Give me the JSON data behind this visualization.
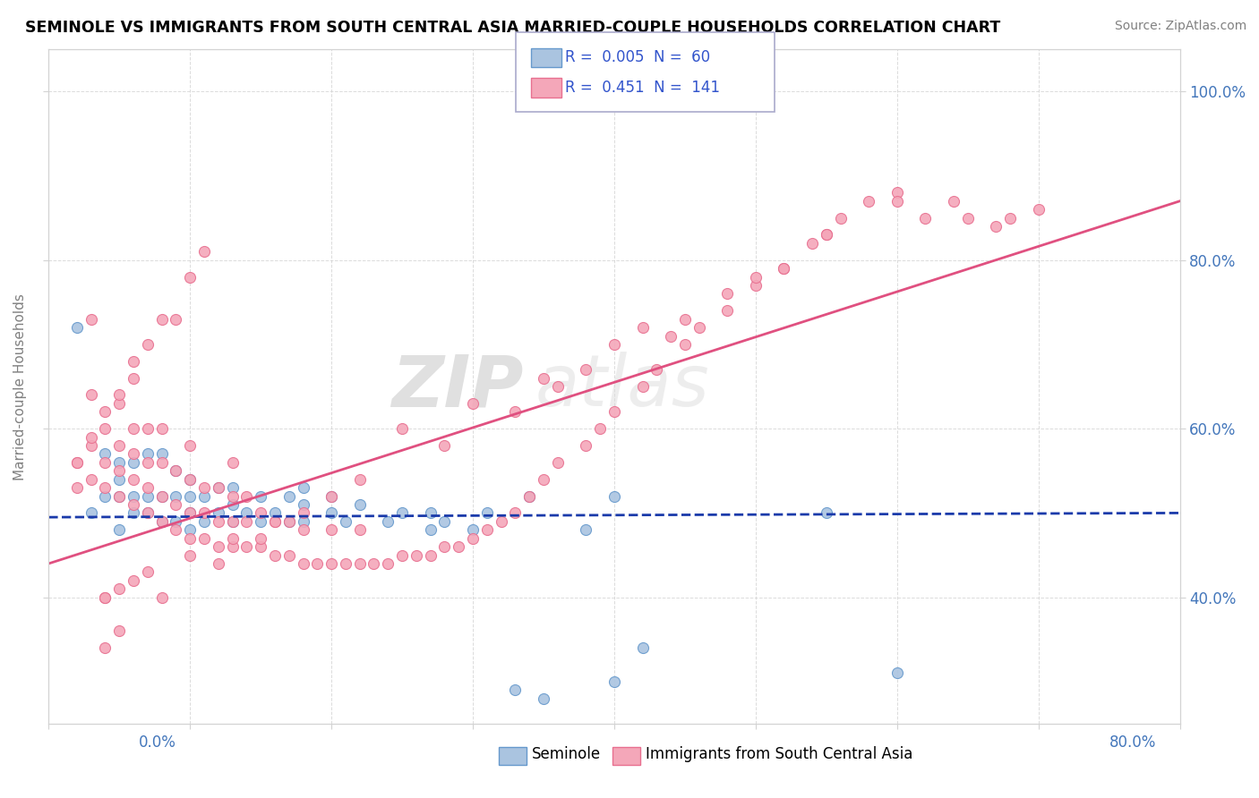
{
  "title": "SEMINOLE VS IMMIGRANTS FROM SOUTH CENTRAL ASIA MARRIED-COUPLE HOUSEHOLDS CORRELATION CHART",
  "source": "Source: ZipAtlas.com",
  "ylabel": "Married-couple Households",
  "ytick_labels": [
    "40.0%",
    "60.0%",
    "80.0%",
    "100.0%"
  ],
  "ytick_values": [
    0.4,
    0.6,
    0.8,
    1.0
  ],
  "xrange": [
    0.0,
    0.8
  ],
  "yrange": [
    0.25,
    1.05
  ],
  "legend1_R": "0.005",
  "legend1_N": "60",
  "legend2_R": "0.451",
  "legend2_N": "141",
  "series1_color": "#aac4e0",
  "series1_edge": "#6699cc",
  "series2_color": "#f4a7b9",
  "series2_edge": "#e87090",
  "trendline1_color": "#1a3aaa",
  "trendline2_color": "#e05080",
  "watermark_zip": "ZIP",
  "watermark_atlas": "atlas",
  "background_color": "#ffffff",
  "seminole_x": [
    0.02,
    0.03,
    0.04,
    0.04,
    0.05,
    0.05,
    0.05,
    0.05,
    0.06,
    0.06,
    0.06,
    0.07,
    0.07,
    0.07,
    0.08,
    0.08,
    0.08,
    0.09,
    0.09,
    0.09,
    0.1,
    0.1,
    0.1,
    0.1,
    0.11,
    0.11,
    0.12,
    0.12,
    0.13,
    0.13,
    0.13,
    0.14,
    0.15,
    0.15,
    0.16,
    0.17,
    0.17,
    0.18,
    0.18,
    0.18,
    0.2,
    0.2,
    0.21,
    0.22,
    0.24,
    0.25,
    0.27,
    0.27,
    0.28,
    0.3,
    0.31,
    0.33,
    0.34,
    0.35,
    0.38,
    0.4,
    0.4,
    0.42,
    0.55,
    0.6
  ],
  "seminole_y": [
    0.72,
    0.5,
    0.52,
    0.57,
    0.48,
    0.52,
    0.54,
    0.56,
    0.5,
    0.52,
    0.56,
    0.5,
    0.52,
    0.57,
    0.49,
    0.52,
    0.57,
    0.49,
    0.52,
    0.55,
    0.48,
    0.5,
    0.52,
    0.54,
    0.49,
    0.52,
    0.5,
    0.53,
    0.49,
    0.51,
    0.53,
    0.5,
    0.49,
    0.52,
    0.5,
    0.49,
    0.52,
    0.49,
    0.51,
    0.53,
    0.5,
    0.52,
    0.49,
    0.51,
    0.49,
    0.5,
    0.48,
    0.5,
    0.49,
    0.48,
    0.5,
    0.29,
    0.52,
    0.28,
    0.48,
    0.3,
    0.52,
    0.34,
    0.5,
    0.31
  ],
  "immigrants_x": [
    0.02,
    0.03,
    0.03,
    0.04,
    0.04,
    0.04,
    0.05,
    0.05,
    0.05,
    0.05,
    0.06,
    0.06,
    0.06,
    0.06,
    0.07,
    0.07,
    0.07,
    0.07,
    0.08,
    0.08,
    0.08,
    0.08,
    0.09,
    0.09,
    0.09,
    0.1,
    0.1,
    0.1,
    0.1,
    0.11,
    0.11,
    0.11,
    0.12,
    0.12,
    0.12,
    0.13,
    0.13,
    0.13,
    0.13,
    0.14,
    0.14,
    0.14,
    0.15,
    0.15,
    0.16,
    0.16,
    0.17,
    0.17,
    0.18,
    0.18,
    0.19,
    0.2,
    0.2,
    0.21,
    0.22,
    0.22,
    0.23,
    0.24,
    0.25,
    0.26,
    0.27,
    0.28,
    0.29,
    0.3,
    0.31,
    0.32,
    0.33,
    0.34,
    0.35,
    0.36,
    0.38,
    0.39,
    0.4,
    0.42,
    0.43,
    0.45,
    0.46,
    0.48,
    0.5,
    0.52,
    0.54,
    0.55,
    0.56,
    0.58,
    0.6,
    0.62,
    0.64,
    0.65,
    0.67,
    0.68,
    0.7,
    0.42,
    0.48,
    0.35,
    0.5,
    0.55,
    0.6,
    0.4,
    0.3,
    0.25,
    0.52,
    0.45,
    0.38,
    0.33,
    0.28,
    0.22,
    0.18,
    0.15,
    0.12,
    0.08,
    0.05,
    0.04,
    0.36,
    0.44,
    0.2,
    0.16,
    0.13,
    0.1,
    0.07,
    0.06,
    0.05,
    0.04,
    0.04,
    0.03,
    0.03,
    0.02,
    0.02,
    0.03,
    0.04,
    0.05,
    0.06,
    0.06,
    0.07,
    0.08,
    0.09,
    0.1,
    0.11
  ],
  "immigrants_y": [
    0.56,
    0.54,
    0.58,
    0.53,
    0.56,
    0.6,
    0.52,
    0.55,
    0.58,
    0.63,
    0.51,
    0.54,
    0.57,
    0.6,
    0.5,
    0.53,
    0.56,
    0.6,
    0.49,
    0.52,
    0.56,
    0.6,
    0.48,
    0.51,
    0.55,
    0.47,
    0.5,
    0.54,
    0.58,
    0.47,
    0.5,
    0.53,
    0.46,
    0.49,
    0.53,
    0.46,
    0.49,
    0.52,
    0.56,
    0.46,
    0.49,
    0.52,
    0.46,
    0.5,
    0.45,
    0.49,
    0.45,
    0.49,
    0.44,
    0.48,
    0.44,
    0.44,
    0.48,
    0.44,
    0.44,
    0.48,
    0.44,
    0.44,
    0.45,
    0.45,
    0.45,
    0.46,
    0.46,
    0.47,
    0.48,
    0.49,
    0.5,
    0.52,
    0.54,
    0.56,
    0.58,
    0.6,
    0.62,
    0.65,
    0.67,
    0.7,
    0.72,
    0.74,
    0.77,
    0.79,
    0.82,
    0.83,
    0.85,
    0.87,
    0.88,
    0.85,
    0.87,
    0.85,
    0.84,
    0.85,
    0.86,
    0.72,
    0.76,
    0.66,
    0.78,
    0.83,
    0.87,
    0.7,
    0.63,
    0.6,
    0.79,
    0.73,
    0.67,
    0.62,
    0.58,
    0.54,
    0.5,
    0.47,
    0.44,
    0.4,
    0.36,
    0.34,
    0.65,
    0.71,
    0.52,
    0.49,
    0.47,
    0.45,
    0.43,
    0.42,
    0.41,
    0.4,
    0.4,
    0.73,
    0.64,
    0.56,
    0.53,
    0.59,
    0.62,
    0.64,
    0.66,
    0.68,
    0.7,
    0.73,
    0.73,
    0.78,
    0.81
  ],
  "trendline1_x": [
    0.0,
    0.8
  ],
  "trendline1_y": [
    0.495,
    0.5
  ],
  "trendline2_x": [
    0.0,
    0.8
  ],
  "trendline2_y": [
    0.44,
    0.87
  ]
}
